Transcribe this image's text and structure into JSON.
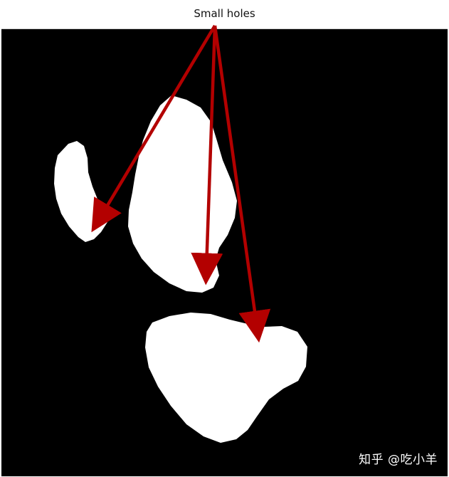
{
  "annotation": {
    "label": "Small holes",
    "arrow_color": "#b30000",
    "arrow_count": 3
  },
  "image": {
    "background_color": "#000000",
    "foreground_color": "#ffffff",
    "regions": [
      "left-lobe",
      "center-lobe",
      "bottom-lobe"
    ]
  },
  "watermark": {
    "text": "知乎 @吃小羊"
  }
}
